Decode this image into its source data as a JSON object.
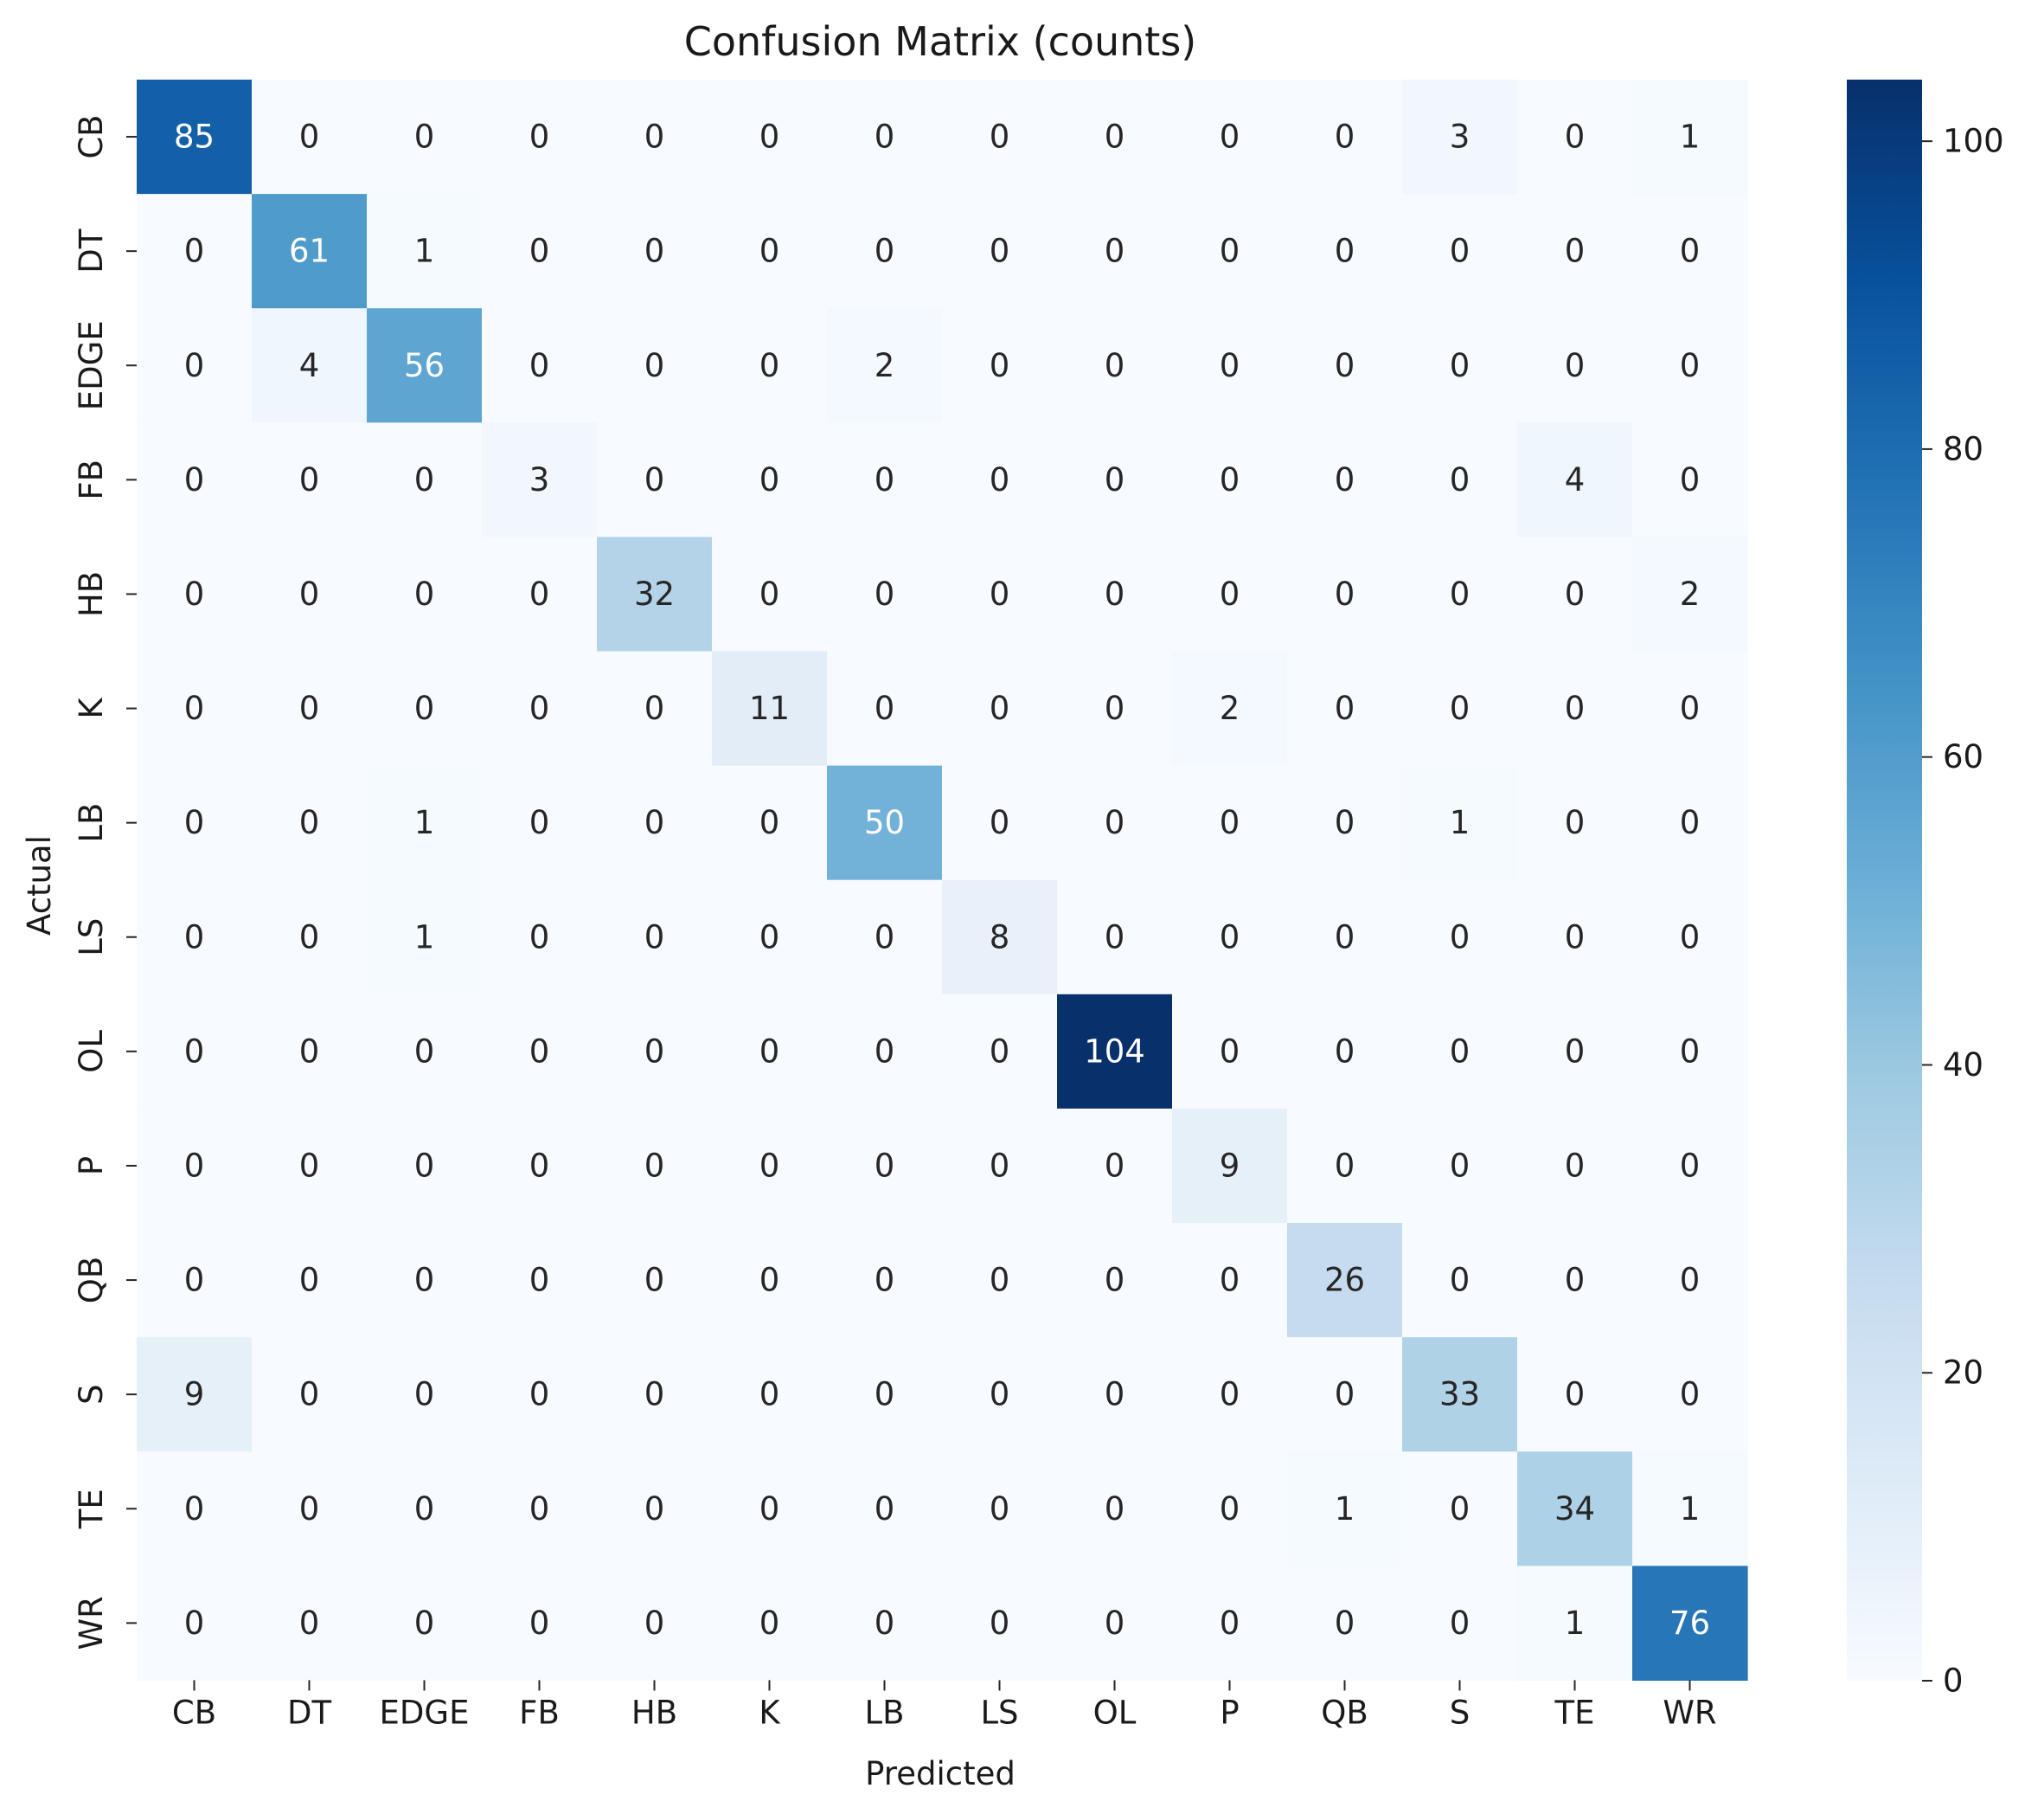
{
  "chart_data": {
    "type": "heatmap",
    "title": "Confusion Matrix (counts)",
    "xlabel": "Predicted",
    "ylabel": "Actual",
    "x_categories": [
      "CB",
      "DT",
      "EDGE",
      "FB",
      "HB",
      "K",
      "LB",
      "LS",
      "OL",
      "P",
      "QB",
      "S",
      "TE",
      "WR"
    ],
    "y_categories": [
      "CB",
      "DT",
      "EDGE",
      "FB",
      "HB",
      "K",
      "LB",
      "LS",
      "OL",
      "P",
      "QB",
      "S",
      "TE",
      "WR"
    ],
    "values": [
      [
        85,
        0,
        0,
        0,
        0,
        0,
        0,
        0,
        0,
        0,
        0,
        3,
        0,
        1
      ],
      [
        0,
        61,
        1,
        0,
        0,
        0,
        0,
        0,
        0,
        0,
        0,
        0,
        0,
        0
      ],
      [
        0,
        4,
        56,
        0,
        0,
        0,
        2,
        0,
        0,
        0,
        0,
        0,
        0,
        0
      ],
      [
        0,
        0,
        0,
        3,
        0,
        0,
        0,
        0,
        0,
        0,
        0,
        0,
        4,
        0
      ],
      [
        0,
        0,
        0,
        0,
        32,
        0,
        0,
        0,
        0,
        0,
        0,
        0,
        0,
        2
      ],
      [
        0,
        0,
        0,
        0,
        0,
        11,
        0,
        0,
        0,
        2,
        0,
        0,
        0,
        0
      ],
      [
        0,
        0,
        1,
        0,
        0,
        0,
        50,
        0,
        0,
        0,
        0,
        1,
        0,
        0
      ],
      [
        0,
        0,
        1,
        0,
        0,
        0,
        0,
        8,
        0,
        0,
        0,
        0,
        0,
        0
      ],
      [
        0,
        0,
        0,
        0,
        0,
        0,
        0,
        0,
        104,
        0,
        0,
        0,
        0,
        0
      ],
      [
        0,
        0,
        0,
        0,
        0,
        0,
        0,
        0,
        0,
        9,
        0,
        0,
        0,
        0
      ],
      [
        0,
        0,
        0,
        0,
        0,
        0,
        0,
        0,
        0,
        0,
        26,
        0,
        0,
        0
      ],
      [
        9,
        0,
        0,
        0,
        0,
        0,
        0,
        0,
        0,
        0,
        0,
        33,
        0,
        0
      ],
      [
        0,
        0,
        0,
        0,
        0,
        0,
        0,
        0,
        0,
        0,
        1,
        0,
        34,
        1
      ],
      [
        0,
        0,
        0,
        0,
        0,
        0,
        0,
        0,
        0,
        0,
        0,
        0,
        1,
        76
      ]
    ],
    "colormap": "Blues",
    "vmin": 0,
    "vmax": 104,
    "colorbar_ticks": [
      0,
      20,
      40,
      60,
      80,
      100
    ],
    "grid": false,
    "legend": "colorbar-right"
  }
}
